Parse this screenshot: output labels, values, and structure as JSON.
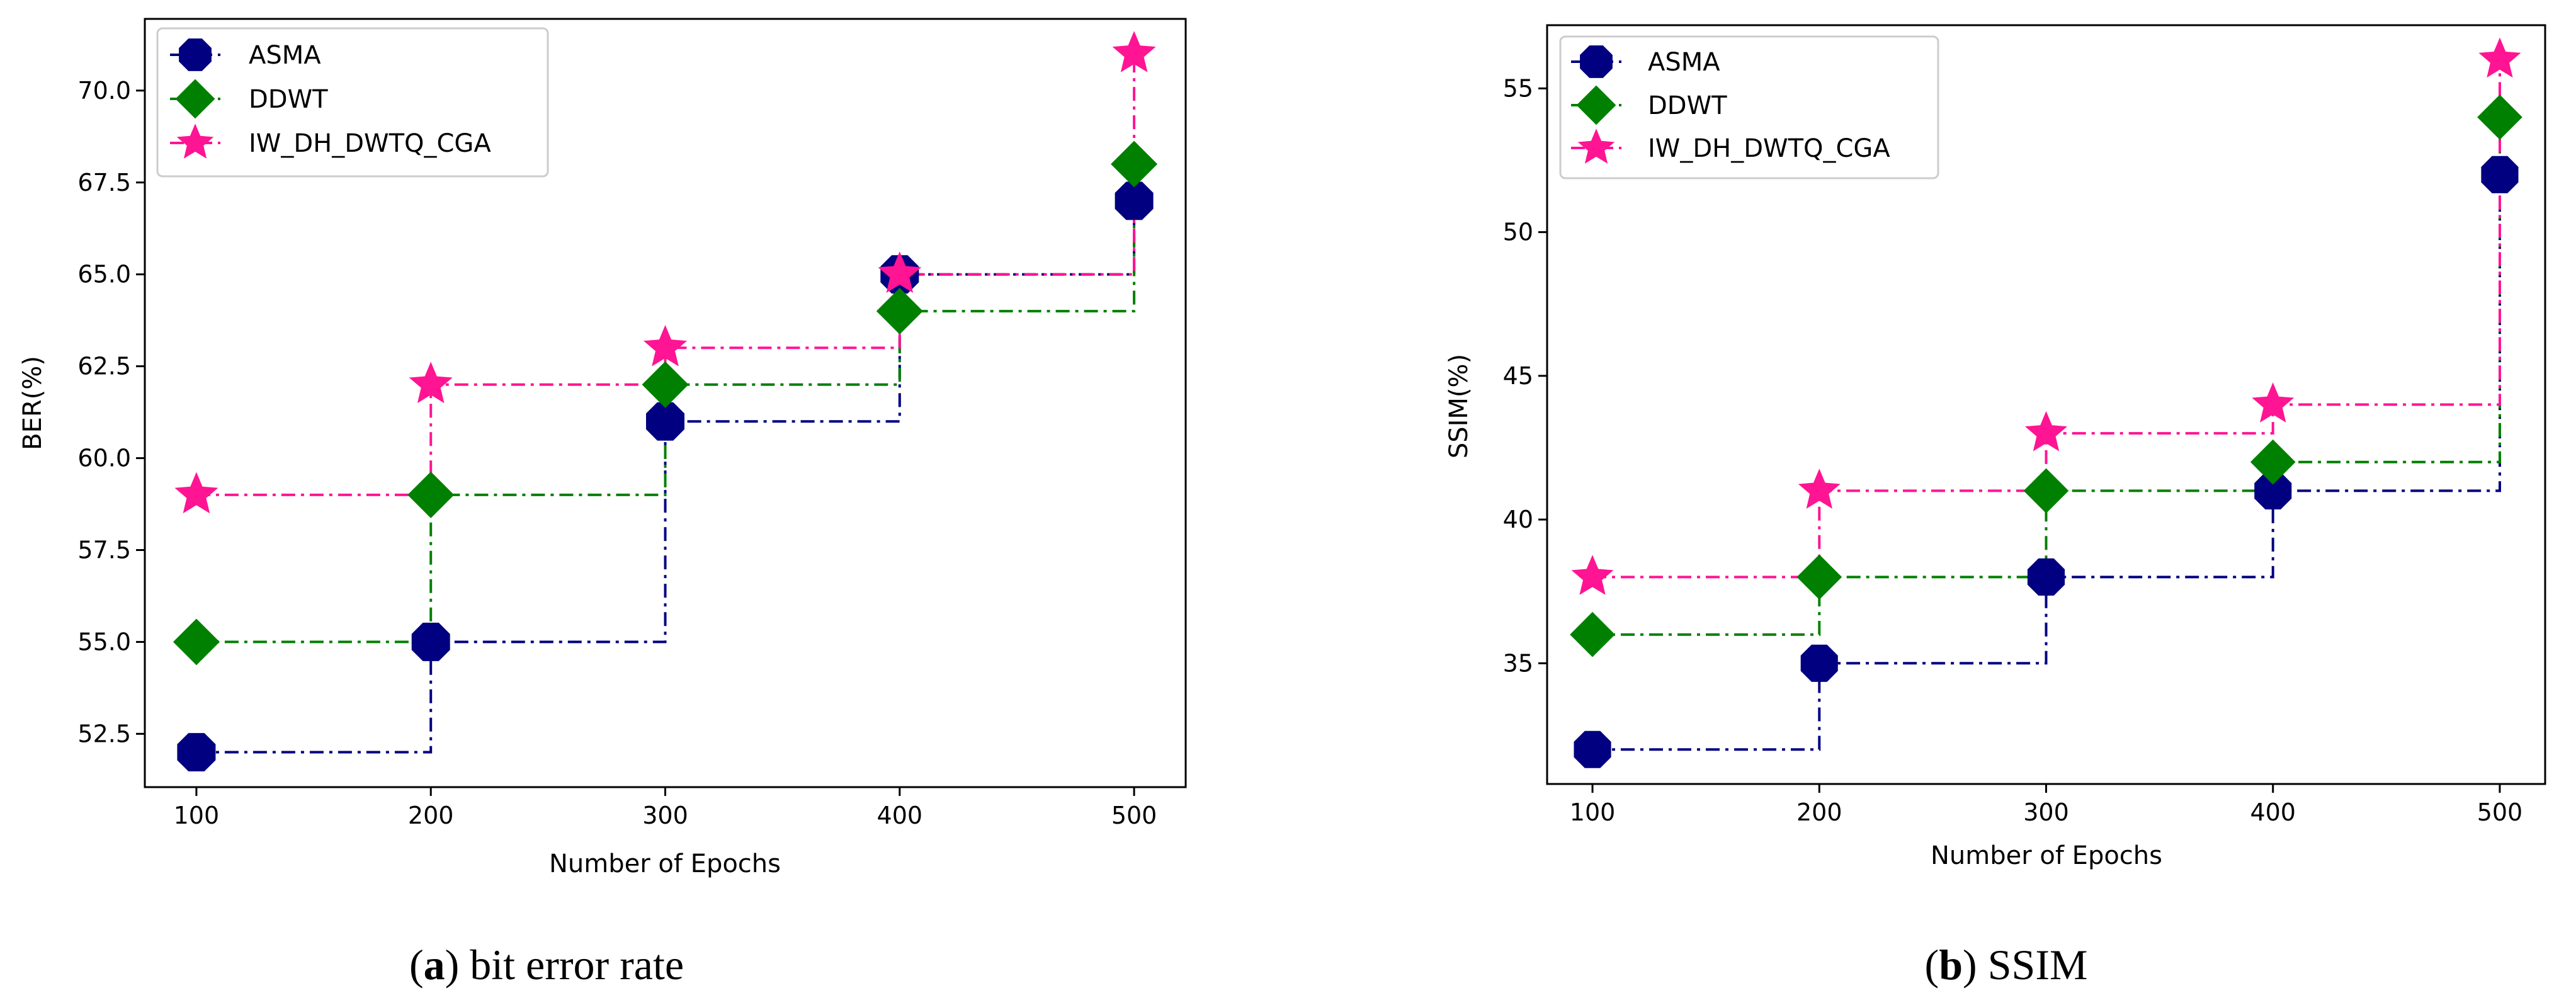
{
  "chart_data": [
    {
      "type": "line",
      "step": "post",
      "panel_letter": "a",
      "caption_text": " bit error rate",
      "xlabel": "Number of Epochs",
      "ylabel": "BER(%)",
      "x": [
        100,
        200,
        300,
        400,
        500
      ],
      "xticks": [
        "100",
        "200",
        "300",
        "400",
        "500"
      ],
      "xlim": [
        78,
        522
      ],
      "yticks": [
        "52.5",
        "55.0",
        "57.5",
        "60.0",
        "62.5",
        "65.0",
        "67.5",
        "70.0"
      ],
      "ytick_values": [
        52.5,
        55.0,
        57.5,
        60.0,
        62.5,
        65.0,
        67.5,
        70.0
      ],
      "ylim": [
        51.05,
        71.95
      ],
      "legend_position": "top-left",
      "series": [
        {
          "name": "ASMA",
          "values": [
            52,
            55,
            61,
            65,
            67
          ],
          "color": "#000080",
          "marker": "octagon"
        },
        {
          "name": "DDWT",
          "values": [
            55,
            59,
            62,
            64,
            68
          ],
          "color": "#008000",
          "marker": "diamond"
        },
        {
          "name": "IW_DH_DWTQ_CGA",
          "values": [
            59,
            62,
            63,
            65,
            71
          ],
          "color": "#ff1493",
          "marker": "star"
        }
      ]
    },
    {
      "type": "line",
      "step": "post",
      "panel_letter": "b",
      "caption_text": " SSIM",
      "xlabel": "Number of Epochs",
      "ylabel": "SSIM(%)",
      "x": [
        100,
        200,
        300,
        400,
        500
      ],
      "xticks": [
        "100",
        "200",
        "300",
        "400",
        "500"
      ],
      "xlim": [
        80,
        520
      ],
      "yticks": [
        "35",
        "40",
        "45",
        "50",
        "55"
      ],
      "ytick_values": [
        35,
        40,
        45,
        50,
        55
      ],
      "ylim": [
        30.8,
        57.2
      ],
      "legend_position": "top-left",
      "series": [
        {
          "name": "ASMA",
          "values": [
            32,
            35,
            38,
            41,
            52
          ],
          "color": "#000080",
          "marker": "octagon"
        },
        {
          "name": "DDWT",
          "values": [
            36,
            38,
            41,
            42,
            54
          ],
          "color": "#008000",
          "marker": "diamond"
        },
        {
          "name": "IW_DH_DWTQ_CGA",
          "values": [
            38,
            41,
            43,
            44,
            56
          ],
          "color": "#ff1493",
          "marker": "star"
        }
      ]
    }
  ]
}
